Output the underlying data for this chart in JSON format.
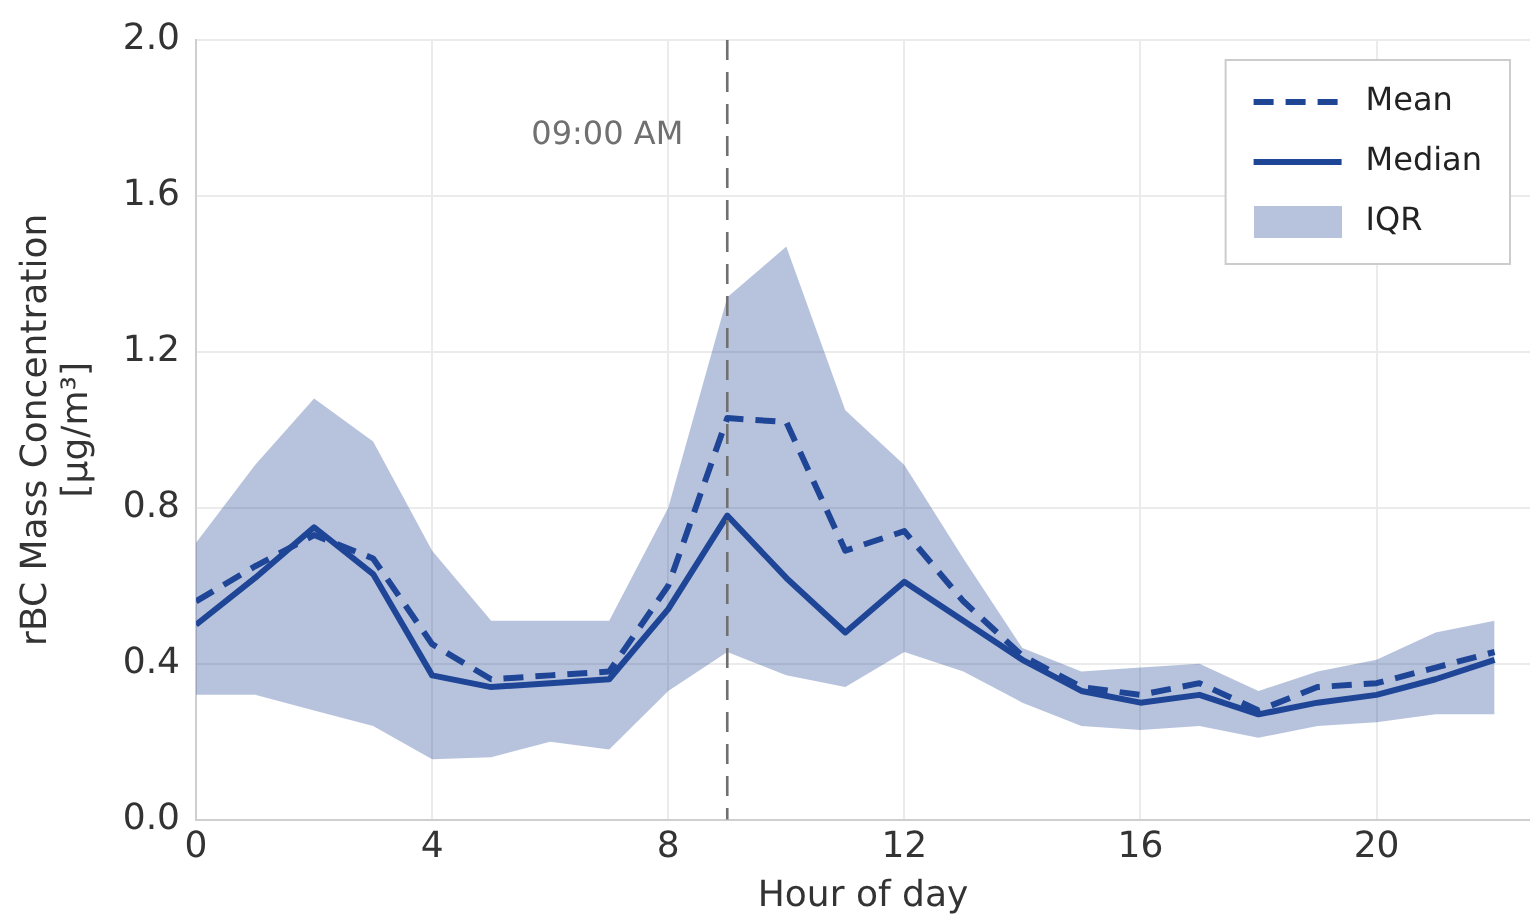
{
  "chart_data": {
    "type": "line",
    "xlabel": "Hour of day",
    "ylabel": "rBC Mass Concentration\n[µg/m³]",
    "x": [
      0,
      1,
      2,
      3,
      4,
      5,
      6,
      7,
      8,
      9,
      10,
      11,
      12,
      13,
      14,
      15,
      16,
      17,
      18,
      19,
      20,
      21,
      22
    ],
    "xlim": [
      0,
      22.6
    ],
    "xticks": [
      0,
      4,
      8,
      12,
      16,
      20
    ],
    "ylim": [
      0,
      2
    ],
    "yticks": [
      {
        "value": 0,
        "label": "0.0"
      },
      0.4,
      0.8,
      1.2,
      1.6,
      {
        "value": 2,
        "label": "2.0"
      }
    ],
    "series": [
      {
        "name": "Mean",
        "color": "#1f4596",
        "line_style": "dashed",
        "values": [
          0.56,
          0.65,
          0.73,
          0.67,
          0.45,
          0.36,
          0.37,
          0.38,
          0.6,
          1.03,
          1.02,
          0.69,
          0.74,
          0.56,
          0.42,
          0.34,
          0.32,
          0.35,
          0.28,
          0.34,
          0.35,
          0.39,
          0.43
        ]
      },
      {
        "name": "Median",
        "color": "#1f4596",
        "line_style": "solid",
        "values": [
          0.5,
          0.62,
          0.75,
          0.63,
          0.37,
          0.34,
          0.35,
          0.36,
          0.54,
          0.78,
          0.62,
          0.48,
          0.61,
          0.51,
          0.41,
          0.33,
          0.3,
          0.32,
          0.27,
          0.3,
          0.32,
          0.36,
          0.41
        ],
        "lower": [
          0.32,
          0.32,
          0.28,
          0.24,
          0.155,
          0.16,
          0.2,
          0.18,
          0.33,
          0.43,
          0.37,
          0.34,
          0.43,
          0.38,
          0.3,
          0.24,
          0.23,
          0.24,
          0.21,
          0.24,
          0.25,
          0.27,
          0.27
        ],
        "upper": [
          0.71,
          0.91,
          1.08,
          0.97,
          0.69,
          0.51,
          0.51,
          0.51,
          0.8,
          1.34,
          1.47,
          1.05,
          0.91,
          0.67,
          0.44,
          0.38,
          0.39,
          0.4,
          0.33,
          0.38,
          0.41,
          0.48,
          0.51
        ]
      }
    ],
    "annotations": [
      "IQR"
    ],
    "ref_lines": [
      {
        "axis": "x",
        "value": 9,
        "label": "09:00 AM",
        "color": "#707070",
        "line_style": "dashed"
      }
    ],
    "grid": true,
    "legend": "top right"
  }
}
